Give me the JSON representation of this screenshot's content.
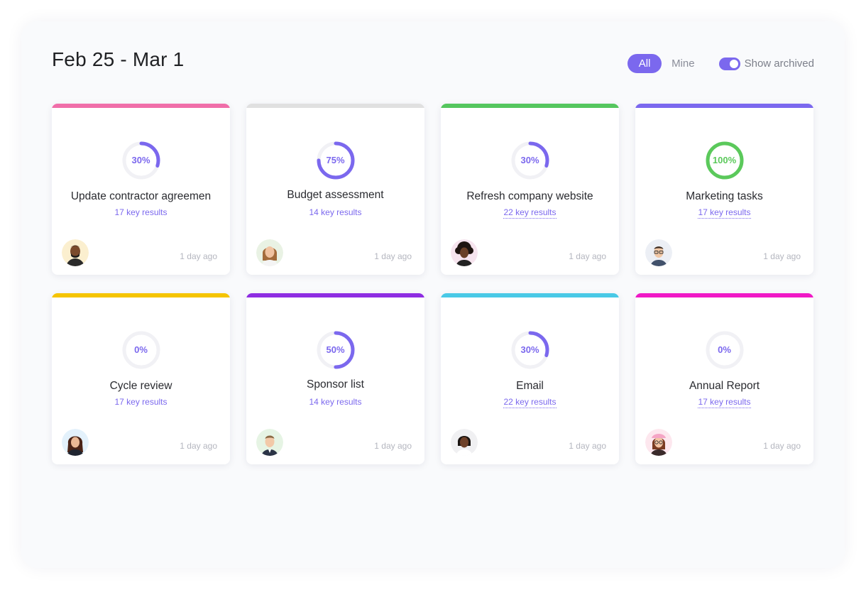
{
  "header": {
    "date_range": "Feb 25 - Mar 1",
    "filter_all": "All",
    "filter_mine": "Mine",
    "toggle_label": "Show archived",
    "toggle_on": true,
    "accent": "#7b68ee"
  },
  "cards": [
    {
      "title": "Update contractor agreemen",
      "key_results": "17 key results",
      "progress": 30,
      "progress_label": "30%",
      "bar_color": "#f06ea9",
      "ring_color": "#7b68ee",
      "avatar": "avatar-man-dark-beard",
      "time": "1 day ago",
      "link": false
    },
    {
      "title": "Budget assessment",
      "key_results": "14 key results",
      "progress": 75,
      "progress_label": "75%",
      "bar_color": "#e0e0e0",
      "ring_color": "#7b68ee",
      "avatar": "avatar-woman-light",
      "time": "1 day ago",
      "link": false
    },
    {
      "title": "Refresh company website",
      "key_results": "22 key results",
      "progress": 30,
      "progress_label": "30%",
      "bar_color": "#55c65e",
      "ring_color": "#7b68ee",
      "avatar": "avatar-man-curly-hair",
      "time": "1 day ago",
      "link": true
    },
    {
      "title": "Marketing tasks",
      "key_results": "17 key results",
      "progress": 100,
      "progress_label": "100%",
      "bar_color": "#7b68ee",
      "ring_color": "#5bc95b",
      "avatar": "avatar-man-glasses",
      "time": "1 day ago",
      "link": true
    },
    {
      "title": "Cycle review",
      "key_results": "17 key results",
      "progress": 0,
      "progress_label": "0%",
      "bar_color": "#f5c400",
      "ring_color": "#7b68ee",
      "avatar": "avatar-woman-dark-hair",
      "time": "1 day ago",
      "link": false
    },
    {
      "title": "Sponsor list",
      "key_results": "14 key results",
      "progress": 50,
      "progress_label": "50%",
      "bar_color": "#8e2de2",
      "ring_color": "#7b68ee",
      "avatar": "avatar-man-suit",
      "time": "1 day ago",
      "link": false
    },
    {
      "title": "Email",
      "key_results": "22 key results",
      "progress": 30,
      "progress_label": "30%",
      "bar_color": "#49c9e6",
      "ring_color": "#7b68ee",
      "avatar": "avatar-woman-short-hair",
      "time": "1 day ago",
      "link": true
    },
    {
      "title": "Annual Report",
      "key_results": "17 key results",
      "progress": 0,
      "progress_label": "0%",
      "bar_color": "#f019c6",
      "ring_color": "#7b68ee",
      "avatar": "avatar-woman-pink-hat",
      "time": "1 day ago",
      "link": true
    }
  ]
}
